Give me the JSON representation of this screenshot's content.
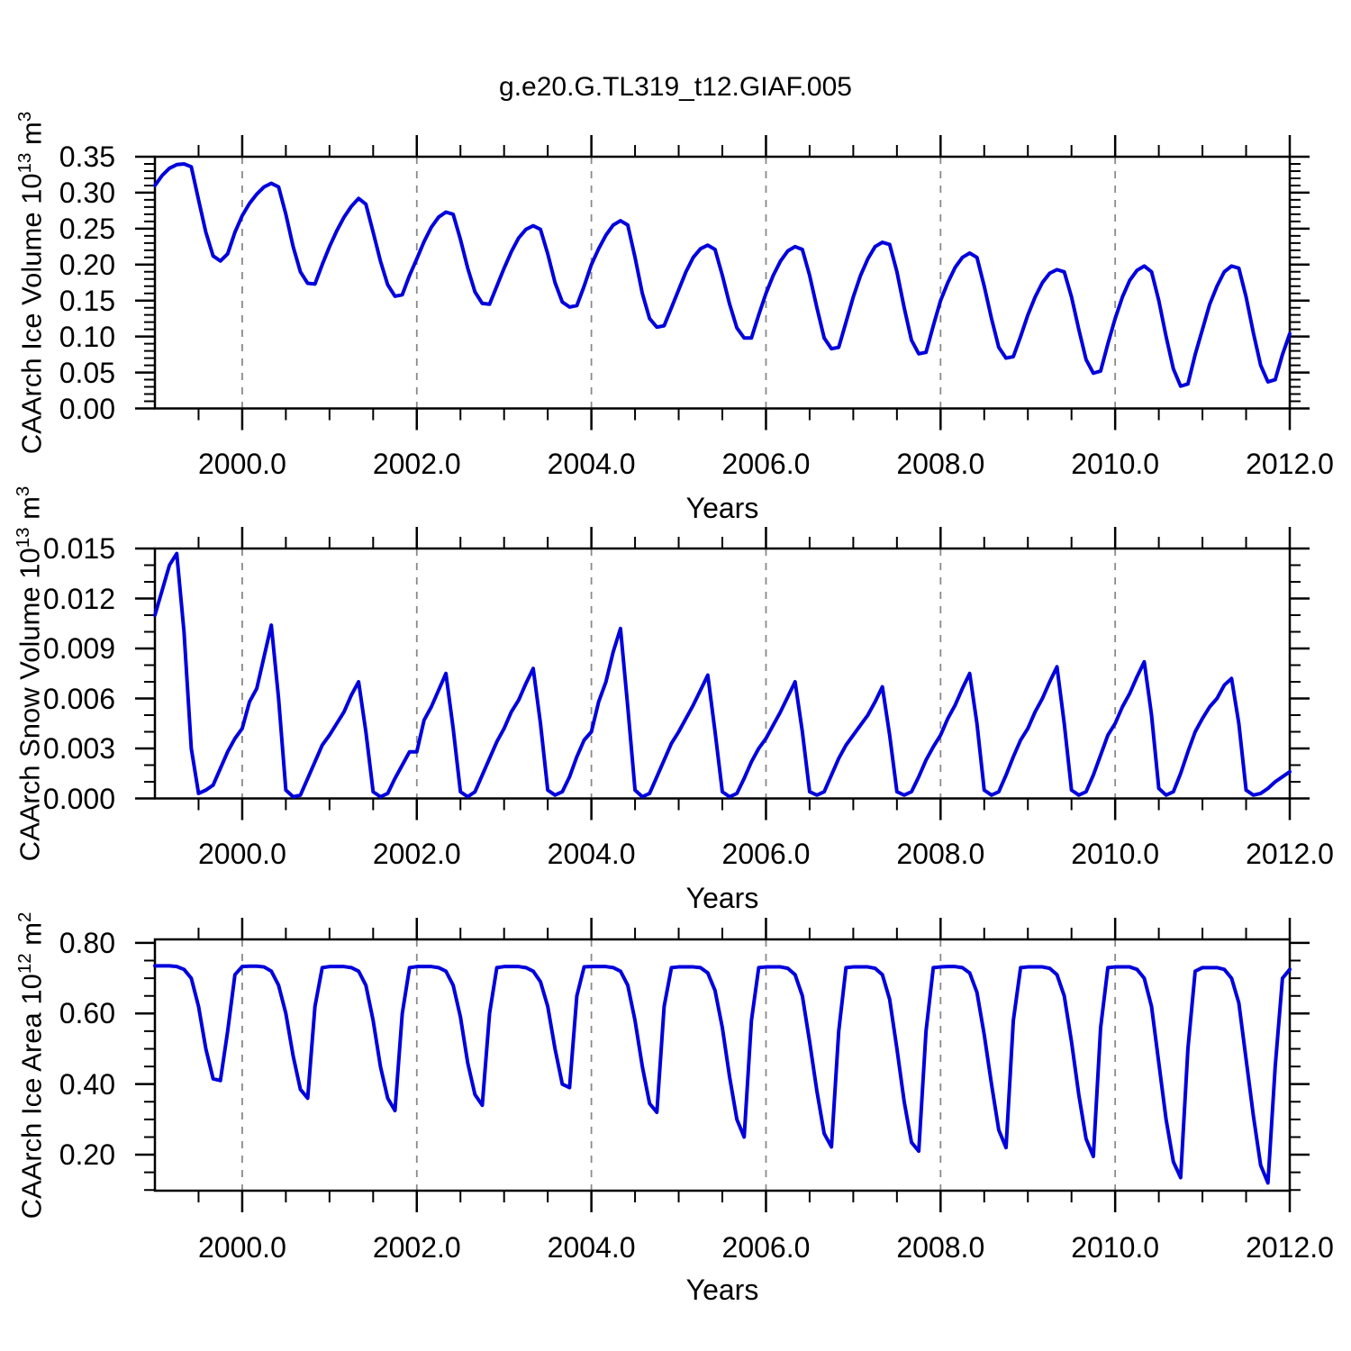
{
  "title": "g.e20.G.TL319_t12.GIAF.005",
  "colors": {
    "line": "#0000dd",
    "frame": "#000000",
    "grid": "#8a8a8a",
    "text": "#000000",
    "background": "#ffffff"
  },
  "chart_data": [
    {
      "type": "line",
      "name": "CAArch Ice Volume",
      "ylabel_parts": [
        {
          "t": "CAArch Ice Volume 10"
        },
        {
          "t": "13",
          "sup": true
        },
        {
          "t": " m"
        },
        {
          "t": "3",
          "sup": true
        }
      ],
      "xlabel": "Years",
      "xlim": [
        1999.0,
        2012.0
      ],
      "ylim": [
        0.0,
        0.35
      ],
      "x_tick_years": [
        2000,
        2002,
        2004,
        2006,
        2008,
        2010,
        2012
      ],
      "x_tick_labels": [
        "2000.0",
        "2002.0",
        "2004.0",
        "2006.0",
        "2008.0",
        "2010.0",
        "2012.0"
      ],
      "x_minor_step": 0.5,
      "grid_years": [
        2000,
        2002,
        2004,
        2006,
        2008,
        2010
      ],
      "y_major_values": [
        0.0,
        0.05,
        0.1,
        0.15,
        0.2,
        0.25,
        0.3,
        0.35
      ],
      "y_tick_labels": [
        "0.00",
        "0.05",
        "0.10",
        "0.15",
        "0.20",
        "0.25",
        "0.30",
        "0.35"
      ],
      "y_minor_step": 0.01,
      "grid_on": false,
      "series": {
        "name": "CAArch Ice Volume",
        "x_start": 1999.0,
        "x_step": 0.0833333,
        "values": [
          0.31,
          0.324,
          0.334,
          0.339,
          0.34,
          0.336,
          0.29,
          0.245,
          0.212,
          0.205,
          0.215,
          0.245,
          0.268,
          0.285,
          0.298,
          0.308,
          0.313,
          0.308,
          0.27,
          0.225,
          0.19,
          0.174,
          0.173,
          0.2,
          0.225,
          0.247,
          0.266,
          0.281,
          0.292,
          0.284,
          0.245,
          0.205,
          0.172,
          0.156,
          0.158,
          0.185,
          0.208,
          0.232,
          0.252,
          0.266,
          0.273,
          0.27,
          0.235,
          0.195,
          0.162,
          0.146,
          0.145,
          0.17,
          0.195,
          0.218,
          0.237,
          0.249,
          0.254,
          0.249,
          0.215,
          0.175,
          0.148,
          0.141,
          0.143,
          0.17,
          0.2,
          0.222,
          0.241,
          0.255,
          0.261,
          0.255,
          0.21,
          0.16,
          0.125,
          0.113,
          0.115,
          0.14,
          0.165,
          0.19,
          0.21,
          0.222,
          0.227,
          0.221,
          0.185,
          0.145,
          0.112,
          0.098,
          0.098,
          0.13,
          0.16,
          0.185,
          0.205,
          0.219,
          0.225,
          0.221,
          0.185,
          0.14,
          0.098,
          0.083,
          0.085,
          0.12,
          0.155,
          0.185,
          0.208,
          0.225,
          0.231,
          0.228,
          0.19,
          0.14,
          0.095,
          0.076,
          0.078,
          0.115,
          0.15,
          0.175,
          0.196,
          0.21,
          0.216,
          0.21,
          0.17,
          0.125,
          0.085,
          0.07,
          0.072,
          0.1,
          0.13,
          0.155,
          0.175,
          0.188,
          0.193,
          0.19,
          0.155,
          0.11,
          0.068,
          0.049,
          0.052,
          0.09,
          0.125,
          0.155,
          0.178,
          0.192,
          0.198,
          0.19,
          0.15,
          0.1,
          0.055,
          0.031,
          0.034,
          0.075,
          0.11,
          0.145,
          0.17,
          0.19,
          0.198,
          0.195,
          0.155,
          0.105,
          0.06,
          0.037,
          0.04,
          0.075,
          0.104
        ]
      }
    },
    {
      "type": "line",
      "name": "CAArch Snow Volume",
      "ylabel_parts": [
        {
          "t": "CAArch Snow Volume 10"
        },
        {
          "t": "13",
          "sup": true
        },
        {
          "t": " m"
        },
        {
          "t": "3",
          "sup": true
        }
      ],
      "xlabel": "Years",
      "xlim": [
        1999.0,
        2012.0
      ],
      "ylim": [
        0.0,
        0.015
      ],
      "x_tick_years": [
        2000,
        2002,
        2004,
        2006,
        2008,
        2010,
        2012
      ],
      "x_tick_labels": [
        "2000.0",
        "2002.0",
        "2004.0",
        "2006.0",
        "2008.0",
        "2010.0",
        "2012.0"
      ],
      "x_minor_step": 0.5,
      "grid_years": [
        2000,
        2002,
        2004,
        2006,
        2008,
        2010
      ],
      "y_major_values": [
        0.0,
        0.003,
        0.006,
        0.009,
        0.012,
        0.015
      ],
      "y_tick_labels": [
        "0.000",
        "0.003",
        "0.006",
        "0.009",
        "0.012",
        "0.015"
      ],
      "y_minor_step": 0.001,
      "grid_on": false,
      "series": {
        "name": "CAArch Snow Volume",
        "x_start": 1999.0,
        "x_step": 0.0833333,
        "values": [
          0.011,
          0.0125,
          0.014,
          0.0147,
          0.01,
          0.003,
          0.0003,
          0.0005,
          0.0008,
          0.0018,
          0.0028,
          0.0036,
          0.0042,
          0.0058,
          0.0066,
          0.0085,
          0.0104,
          0.006,
          0.0005,
          0.0001,
          0.0002,
          0.0012,
          0.0022,
          0.0032,
          0.0038,
          0.0045,
          0.0052,
          0.0062,
          0.007,
          0.004,
          0.0004,
          0.0001,
          0.0003,
          0.0012,
          0.002,
          0.0028,
          0.0028,
          0.0047,
          0.0055,
          0.0065,
          0.0075,
          0.0042,
          0.0004,
          0.0001,
          0.0004,
          0.0014,
          0.0024,
          0.0034,
          0.0042,
          0.0052,
          0.0059,
          0.0069,
          0.0078,
          0.0045,
          0.0005,
          0.0002,
          0.0004,
          0.0013,
          0.0025,
          0.0035,
          0.004,
          0.0058,
          0.007,
          0.0088,
          0.0102,
          0.0055,
          0.0005,
          0.0001,
          0.0003,
          0.0013,
          0.0023,
          0.0033,
          0.004,
          0.0048,
          0.0056,
          0.0065,
          0.0074,
          0.004,
          0.0004,
          0.0001,
          0.0003,
          0.0012,
          0.0022,
          0.003,
          0.0036,
          0.0044,
          0.0052,
          0.0061,
          0.007,
          0.004,
          0.0004,
          0.0002,
          0.0004,
          0.0014,
          0.0024,
          0.0032,
          0.0038,
          0.0044,
          0.005,
          0.0058,
          0.0067,
          0.0038,
          0.0004,
          0.0002,
          0.0004,
          0.0013,
          0.0023,
          0.0031,
          0.0038,
          0.0048,
          0.0056,
          0.0066,
          0.0075,
          0.0045,
          0.0005,
          0.0002,
          0.0004,
          0.0014,
          0.0025,
          0.0035,
          0.0042,
          0.0052,
          0.006,
          0.007,
          0.0079,
          0.0045,
          0.0005,
          0.0002,
          0.0004,
          0.0014,
          0.0026,
          0.0038,
          0.0045,
          0.0055,
          0.0063,
          0.0073,
          0.0082,
          0.005,
          0.0006,
          0.0002,
          0.0004,
          0.0015,
          0.0028,
          0.004,
          0.0048,
          0.0055,
          0.006,
          0.0068,
          0.0072,
          0.0045,
          0.0005,
          0.0002,
          0.0003,
          0.0006,
          0.001,
          0.0013,
          0.0016
        ]
      }
    },
    {
      "type": "line",
      "name": "CAArch Ice Area",
      "ylabel_parts": [
        {
          "t": "CAArch Ice Area 10"
        },
        {
          "t": "12",
          "sup": true
        },
        {
          "t": " m"
        },
        {
          "t": "2",
          "sup": true
        }
      ],
      "xlabel": "Years",
      "xlim": [
        1999.0,
        2012.0
      ],
      "ylim": [
        0.098,
        0.81
      ],
      "x_tick_years": [
        2000,
        2002,
        2004,
        2006,
        2008,
        2010,
        2012
      ],
      "x_tick_labels": [
        "2000.0",
        "2002.0",
        "2004.0",
        "2006.0",
        "2008.0",
        "2010.0",
        "2012.0"
      ],
      "x_minor_step": 0.5,
      "grid_years": [
        2000,
        2002,
        2004,
        2006,
        2008,
        2010
      ],
      "y_major_values": [
        0.2,
        0.4,
        0.6,
        0.8
      ],
      "y_tick_labels": [
        "0.20",
        "0.40",
        "0.60",
        "0.80"
      ],
      "y_minor_step": 0.05,
      "grid_on": false,
      "series": {
        "name": "CAArch Ice Area",
        "x_start": 1999.0,
        "x_step": 0.0833333,
        "values": [
          0.735,
          0.735,
          0.735,
          0.733,
          0.725,
          0.7,
          0.62,
          0.5,
          0.415,
          0.41,
          0.55,
          0.71,
          0.733,
          0.734,
          0.734,
          0.732,
          0.72,
          0.68,
          0.6,
          0.48,
          0.385,
          0.36,
          0.62,
          0.73,
          0.733,
          0.733,
          0.733,
          0.73,
          0.72,
          0.68,
          0.58,
          0.45,
          0.36,
          0.325,
          0.6,
          0.73,
          0.733,
          0.733,
          0.733,
          0.73,
          0.72,
          0.68,
          0.59,
          0.46,
          0.37,
          0.34,
          0.6,
          0.73,
          0.733,
          0.733,
          0.733,
          0.73,
          0.72,
          0.69,
          0.62,
          0.5,
          0.4,
          0.39,
          0.65,
          0.732,
          0.733,
          0.733,
          0.733,
          0.73,
          0.72,
          0.68,
          0.58,
          0.45,
          0.345,
          0.32,
          0.62,
          0.73,
          0.732,
          0.732,
          0.732,
          0.73,
          0.715,
          0.665,
          0.56,
          0.42,
          0.3,
          0.25,
          0.58,
          0.73,
          0.732,
          0.732,
          0.732,
          0.728,
          0.71,
          0.65,
          0.52,
          0.38,
          0.26,
          0.222,
          0.55,
          0.73,
          0.732,
          0.732,
          0.732,
          0.728,
          0.71,
          0.64,
          0.5,
          0.35,
          0.235,
          0.21,
          0.55,
          0.73,
          0.732,
          0.733,
          0.733,
          0.73,
          0.715,
          0.66,
          0.54,
          0.4,
          0.27,
          0.22,
          0.58,
          0.73,
          0.732,
          0.732,
          0.732,
          0.728,
          0.71,
          0.65,
          0.52,
          0.37,
          0.245,
          0.195,
          0.56,
          0.73,
          0.732,
          0.732,
          0.732,
          0.725,
          0.7,
          0.62,
          0.46,
          0.3,
          0.18,
          0.135,
          0.5,
          0.72,
          0.73,
          0.73,
          0.73,
          0.725,
          0.7,
          0.63,
          0.47,
          0.31,
          0.17,
          0.12,
          0.45,
          0.7,
          0.725
        ]
      }
    }
  ]
}
